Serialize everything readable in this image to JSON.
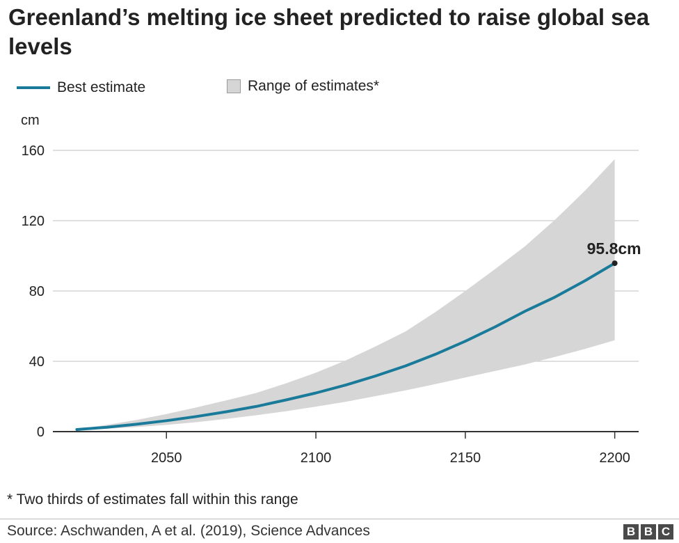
{
  "header": {
    "title": "Greenland’s melting ice sheet predicted to raise global sea levels"
  },
  "legend": {
    "best": "Best estimate",
    "range": "Range of estimates*"
  },
  "footnote": "* Two thirds of estimates fall within this range",
  "source": "Source: Aschwanden, A et al. (2019), Science Advances",
  "logo": [
    "B",
    "B",
    "C"
  ],
  "colors": {
    "best": "#1a7a9a",
    "range": "#d6d6d6",
    "grid": "#cccccc",
    "axis": "#333333"
  },
  "chart_data": {
    "type": "line",
    "ylabel": "cm",
    "x": [
      2020,
      2030,
      2040,
      2050,
      2060,
      2070,
      2080,
      2090,
      2100,
      2110,
      2120,
      2130,
      2140,
      2150,
      2160,
      2170,
      2180,
      2190,
      2200
    ],
    "series": [
      {
        "name": "Best estimate",
        "values": [
          1.2,
          2.5,
          4.2,
          6.2,
          8.6,
          11.3,
          14.3,
          18.0,
          22.0,
          26.5,
          31.7,
          37.4,
          44.0,
          51.4,
          59.6,
          68.5,
          76.5,
          85.8,
          95.8
        ]
      },
      {
        "name": "Range of estimates*",
        "type": "area",
        "low": [
          0.8,
          1.6,
          2.6,
          3.8,
          5.4,
          7.2,
          9.3,
          11.6,
          14.2,
          17.0,
          20.2,
          23.5,
          27.0,
          30.8,
          34.5,
          38.2,
          42.5,
          47.0,
          52.0
        ],
        "high": [
          1.6,
          3.8,
          6.6,
          10.0,
          13.8,
          17.8,
          22.0,
          27.5,
          33.5,
          40.5,
          48.5,
          57.0,
          68.0,
          80.0,
          92.5,
          105.5,
          120.5,
          137.0,
          155.0
        ]
      }
    ],
    "annotation": {
      "x": 2200,
      "y": 95.8,
      "label": "95.8cm"
    },
    "xticks": [
      2050,
      2100,
      2150,
      2200
    ],
    "xtick_labels": [
      "2050",
      "2100",
      "2150",
      "2200"
    ],
    "yticks": [
      0,
      40,
      80,
      120,
      160
    ],
    "ytick_labels": [
      "0",
      "40",
      "80",
      "120",
      "160"
    ],
    "xlim": [
      2012,
      2208
    ],
    "ylim": [
      0,
      160
    ],
    "grid": true
  }
}
